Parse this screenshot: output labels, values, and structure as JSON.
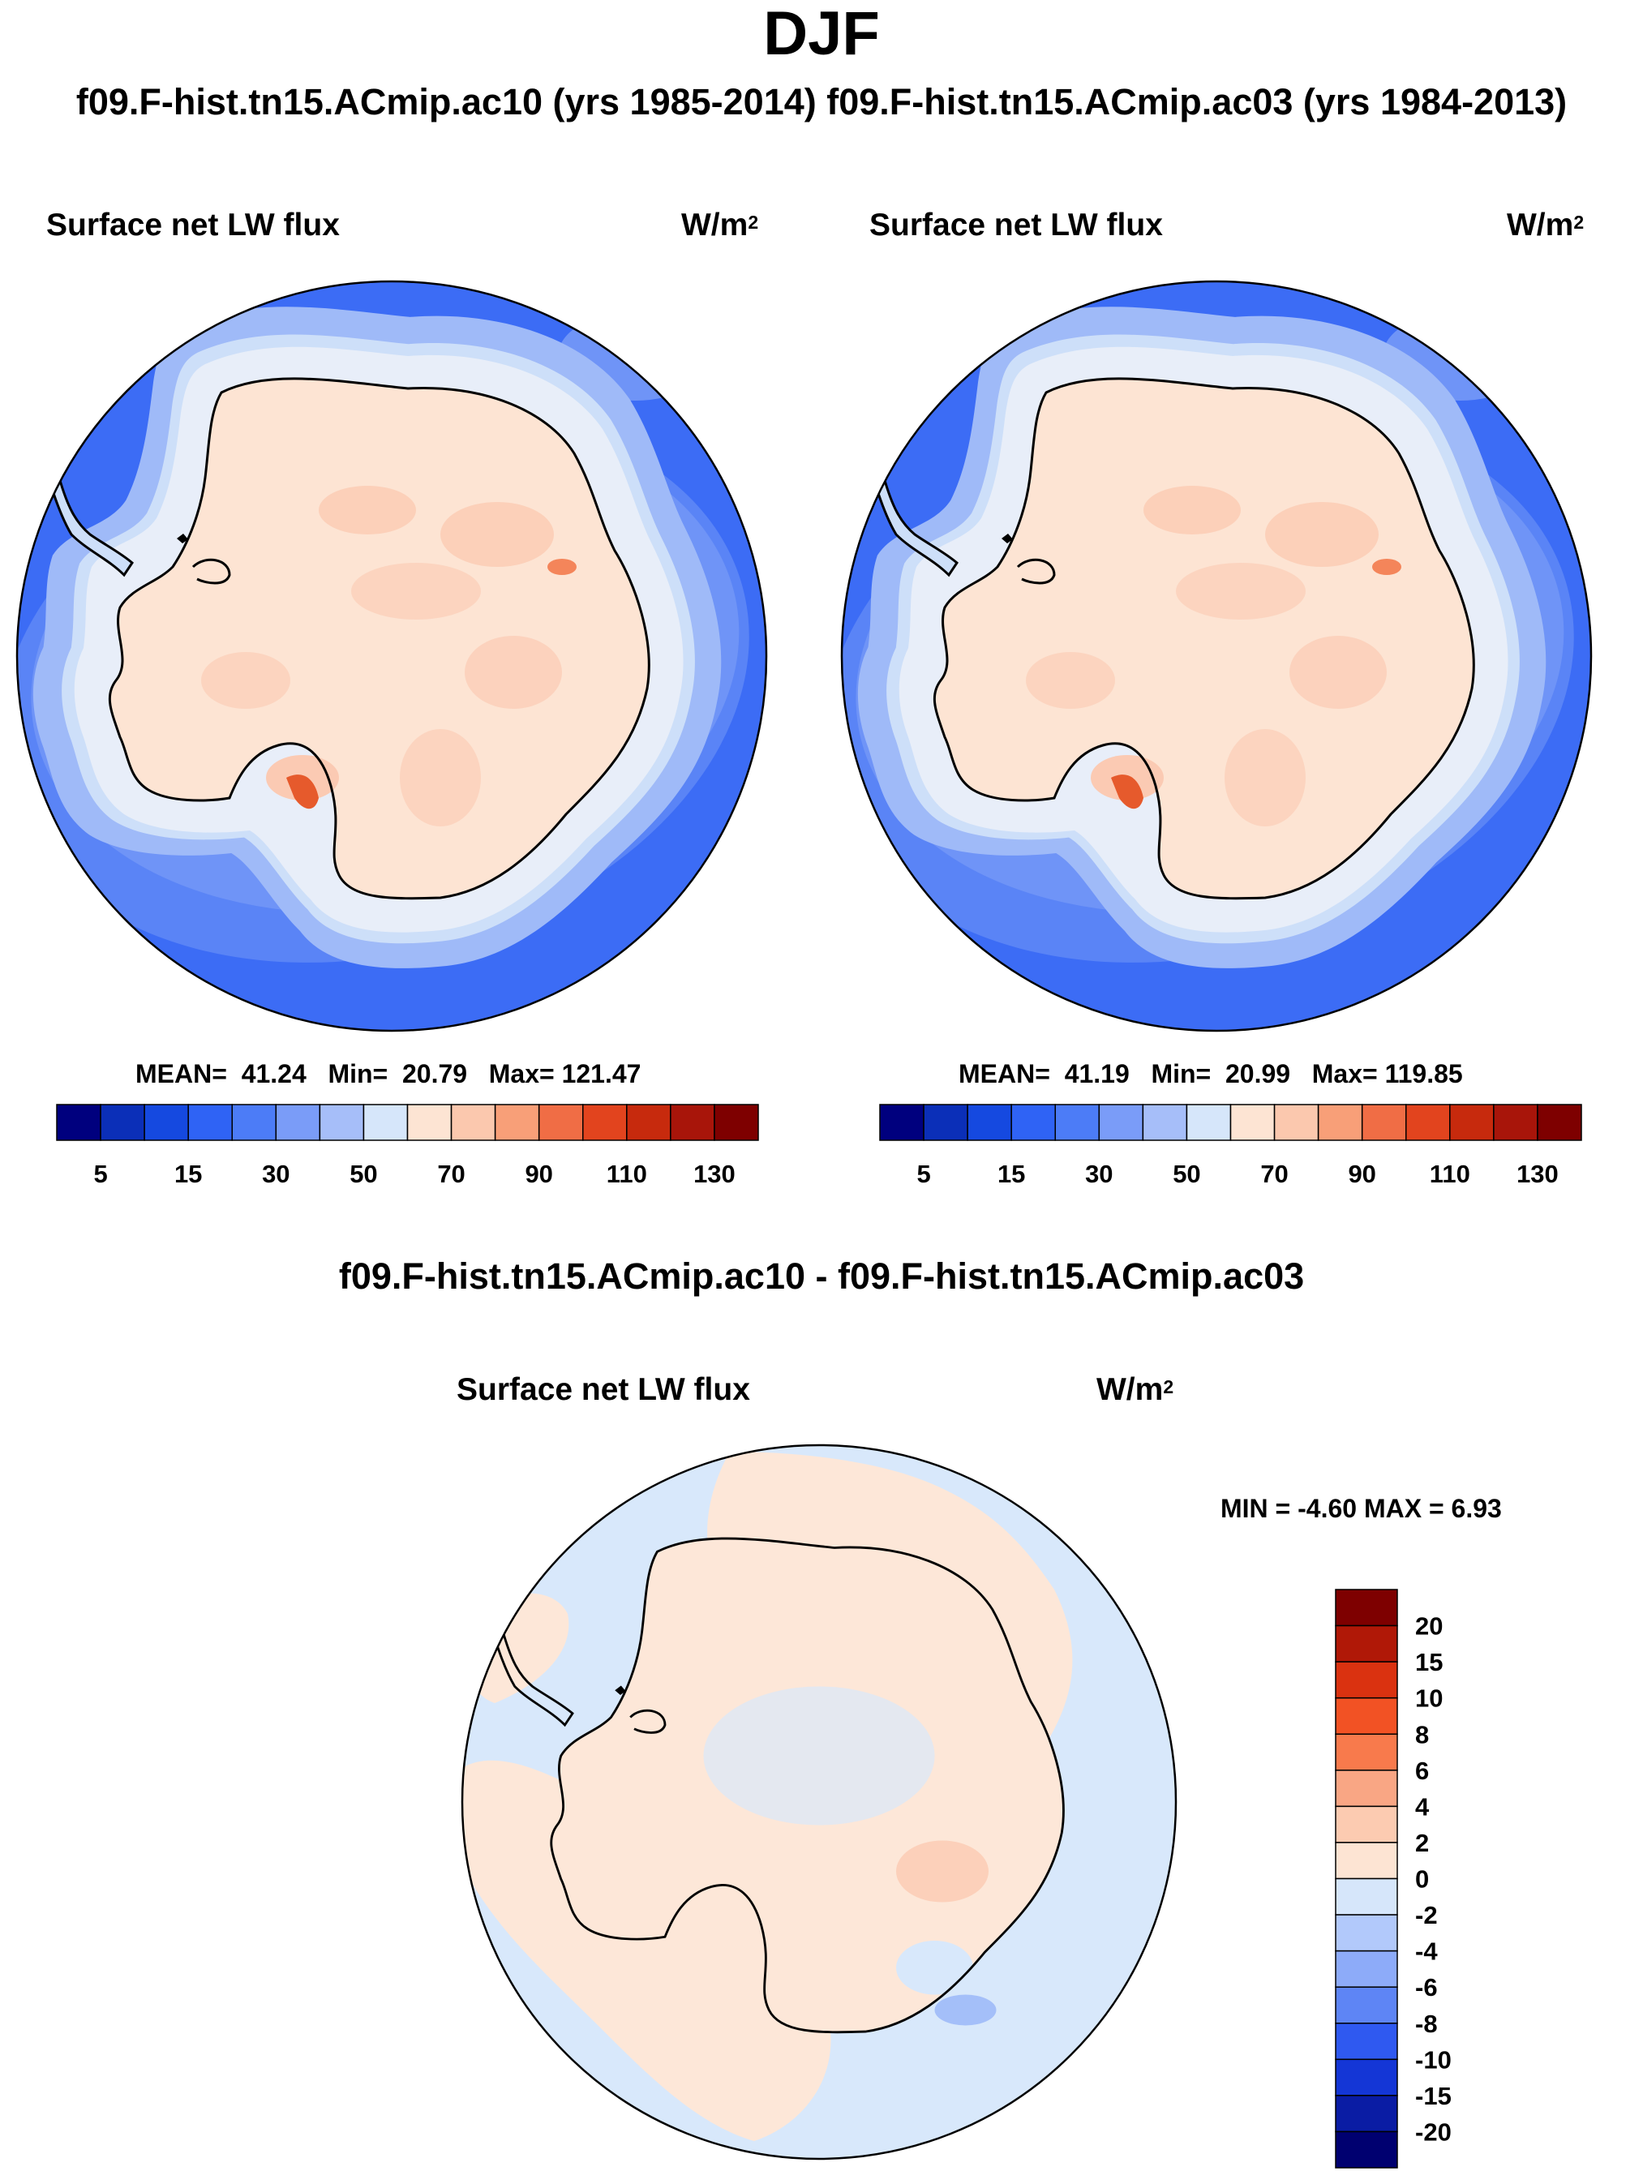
{
  "season": "DJF",
  "case_title": "f09.F-hist.tn15.ACmip.ac10 (yrs 1985-2014) f09.F-hist.tn15.ACmip.ac03 (yrs 1984-2013)",
  "panels": [
    {
      "variable": "Surface net LW flux",
      "units_base": "W/m",
      "units_exp": "2",
      "mean_label": "MEAN=",
      "mean": "41.24",
      "min_label": "Min=",
      "min": "20.79",
      "max_label": "Max=",
      "max": "121.47"
    },
    {
      "variable": "Surface net LW flux",
      "units_base": "W/m",
      "units_exp": "2",
      "mean_label": "MEAN=",
      "mean": "41.19",
      "min_label": "Min=",
      "min": "20.99",
      "max_label": "Max=",
      "max": "119.85"
    }
  ],
  "diff": {
    "title": "f09.F-hist.tn15.ACmip.ac10 - f09.F-hist.tn15.ACmip.ac03",
    "variable": "Surface net LW flux",
    "units_base": "W/m",
    "units_exp": "2",
    "minmax": "MIN =  -4.60 MAX =   6.93"
  },
  "colorbar_main": {
    "colors": [
      "#00007e",
      "#0b2fb8",
      "#1549e0",
      "#2f63f5",
      "#4c7cf7",
      "#7a9cf8",
      "#a6bef9",
      "#d6e6fa",
      "#fde4d3",
      "#fbc8ae",
      "#f89f78",
      "#f06d45",
      "#e2441e",
      "#c72a0d",
      "#a8150a",
      "#7e0000"
    ],
    "labels": [
      "5",
      "15",
      "30",
      "50",
      "70",
      "90",
      "110",
      "130"
    ]
  },
  "colorbar_diff": {
    "colors": [
      "#7e0000",
      "#b01807",
      "#da3210",
      "#f25224",
      "#f87a4c",
      "#f9a684",
      "#fccbb1",
      "#fde4d3",
      "#d6e6fa",
      "#b2c9fb",
      "#8dabf9",
      "#5e85f5",
      "#2f59f0",
      "#1436d6",
      "#0a1ca4",
      "#000070"
    ],
    "labels": [
      "20",
      "15",
      "10",
      "8",
      "6",
      "4",
      "2",
      "0",
      "-2",
      "-4",
      "-6",
      "-8",
      "-10",
      "-15",
      "-20"
    ]
  },
  "map_colors": {
    "ocean_low": "#3c6cf5",
    "ocean_mid": "#6f94f7",
    "ocean_high": "#9fbaf8",
    "coast_band": "#cddff9",
    "land": "#fde4d3",
    "land_warm": "#fbcab3",
    "hotspot": "#e65a2c",
    "diff_neg": "#d8e8fb",
    "diff_pos": "#fde7d8",
    "diff_neg_strong": "#9fbaf8"
  }
}
